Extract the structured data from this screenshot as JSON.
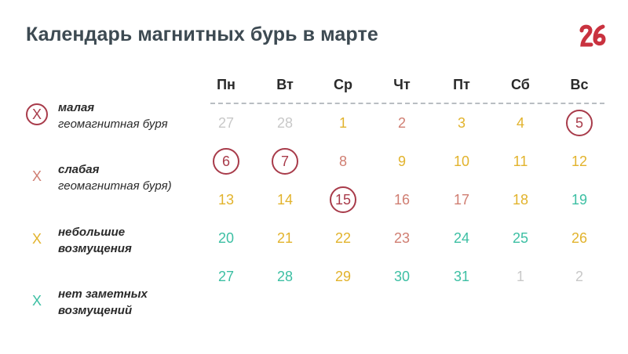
{
  "title": "Календарь магнитных бурь в марте",
  "logo": {
    "text": "26",
    "color": "#c9323f"
  },
  "colors": {
    "small_storm": "#a83b4a",
    "weak_storm": "#d07e72",
    "minor_disturbance": "#e2b32c",
    "none": "#3cbfa3",
    "other_month": "#c8c8c8"
  },
  "legend": [
    {
      "mark": "X",
      "level": "small_storm",
      "circled": true,
      "line1": "малая",
      "line2": "геомагнитная буря"
    },
    {
      "mark": "X",
      "level": "weak_storm",
      "circled": false,
      "line1": "слабая",
      "line2": "геомагнитная буря)"
    },
    {
      "mark": "X",
      "level": "minor_disturbance",
      "circled": false,
      "line1": "небольшие",
      "line2": "возмущения"
    },
    {
      "mark": "X",
      "level": "none",
      "circled": false,
      "line1": "нет заметных",
      "line2": "возмущений"
    }
  ],
  "weekdays": [
    "Пн",
    "Вт",
    "Ср",
    "Чт",
    "Пт",
    "Сб",
    "Вс"
  ],
  "weeks": [
    [
      {
        "day": "27",
        "level": "other_month"
      },
      {
        "day": "28",
        "level": "other_month"
      },
      {
        "day": "1",
        "level": "minor_disturbance"
      },
      {
        "day": "2",
        "level": "weak_storm"
      },
      {
        "day": "3",
        "level": "minor_disturbance"
      },
      {
        "day": "4",
        "level": "minor_disturbance"
      },
      {
        "day": "5",
        "level": "small_storm",
        "circled": true
      }
    ],
    [
      {
        "day": "6",
        "level": "small_storm",
        "circled": true
      },
      {
        "day": "7",
        "level": "small_storm",
        "circled": true
      },
      {
        "day": "8",
        "level": "weak_storm"
      },
      {
        "day": "9",
        "level": "minor_disturbance"
      },
      {
        "day": "10",
        "level": "minor_disturbance"
      },
      {
        "day": "11",
        "level": "minor_disturbance"
      },
      {
        "day": "12",
        "level": "minor_disturbance"
      }
    ],
    [
      {
        "day": "13",
        "level": "minor_disturbance"
      },
      {
        "day": "14",
        "level": "minor_disturbance"
      },
      {
        "day": "15",
        "level": "small_storm",
        "circled": true
      },
      {
        "day": "16",
        "level": "weak_storm"
      },
      {
        "day": "17",
        "level": "weak_storm"
      },
      {
        "day": "18",
        "level": "minor_disturbance"
      },
      {
        "day": "19",
        "level": "none"
      }
    ],
    [
      {
        "day": "20",
        "level": "none"
      },
      {
        "day": "21",
        "level": "minor_disturbance"
      },
      {
        "day": "22",
        "level": "minor_disturbance"
      },
      {
        "day": "23",
        "level": "weak_storm"
      },
      {
        "day": "24",
        "level": "none"
      },
      {
        "day": "25",
        "level": "none"
      },
      {
        "day": "26",
        "level": "minor_disturbance"
      }
    ],
    [
      {
        "day": "27",
        "level": "none"
      },
      {
        "day": "28",
        "level": "none"
      },
      {
        "day": "29",
        "level": "minor_disturbance"
      },
      {
        "day": "30",
        "level": "none"
      },
      {
        "day": "31",
        "level": "none"
      },
      {
        "day": "1",
        "level": "other_month"
      },
      {
        "day": "2",
        "level": "other_month"
      }
    ]
  ]
}
